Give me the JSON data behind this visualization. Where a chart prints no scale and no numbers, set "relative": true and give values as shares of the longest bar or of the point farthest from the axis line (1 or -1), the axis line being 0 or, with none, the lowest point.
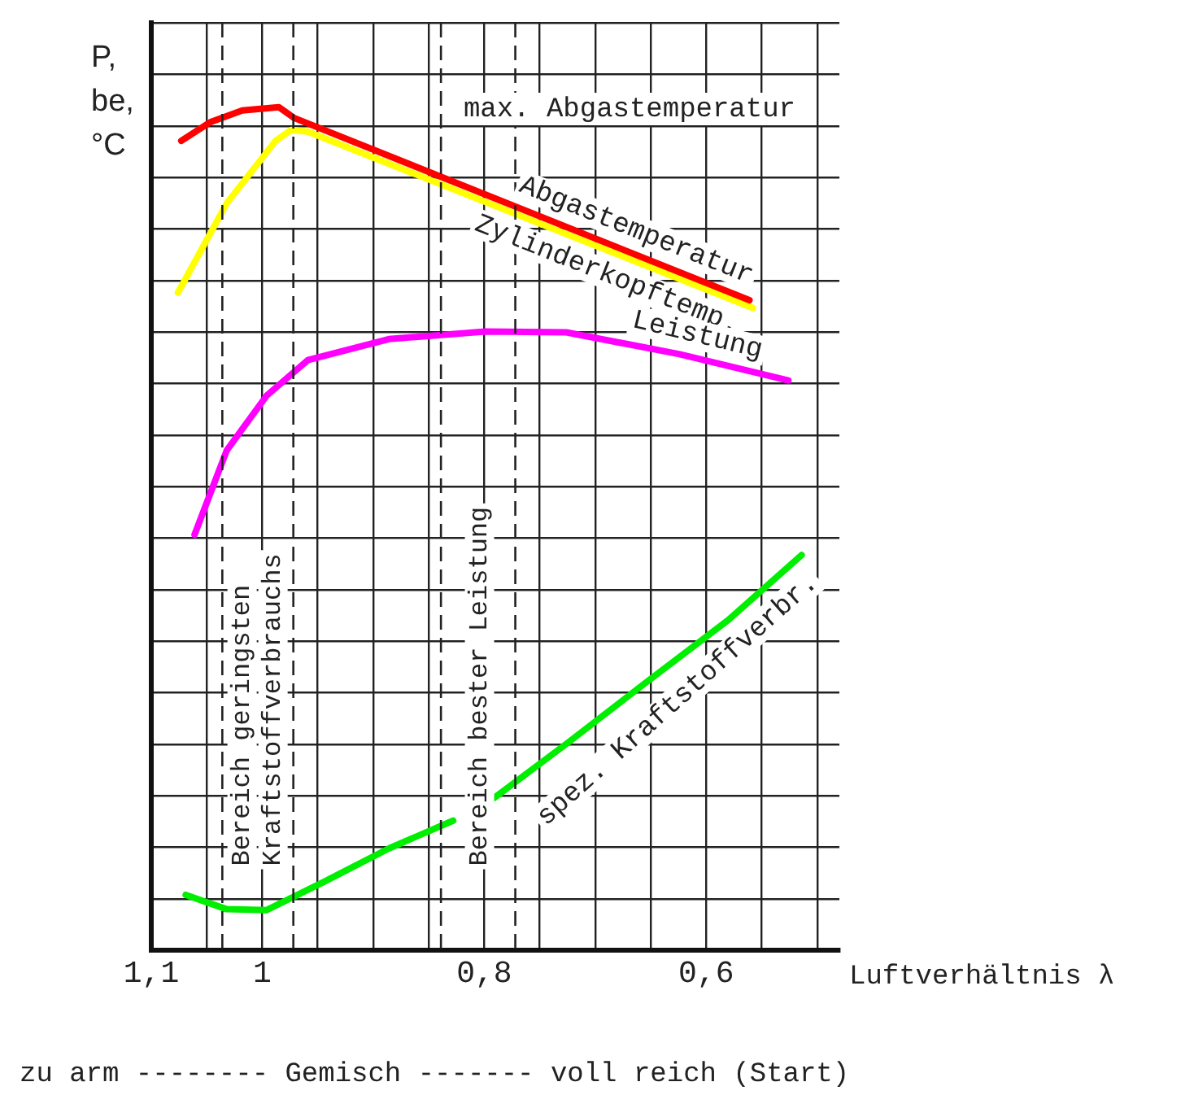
{
  "chart_data": {
    "type": "line",
    "relative": true,
    "xlabel": "Luftverhältnis λ",
    "ylabel": "P, be, °C",
    "xlim": [
      1.1,
      0.48
    ],
    "xticks": [
      {
        "value": 1.1,
        "label": "1,1"
      },
      {
        "value": 1.05,
        "label": null
      },
      {
        "value": 1,
        "label": "1"
      },
      {
        "value": 0.95,
        "label": null
      },
      {
        "value": 0.9,
        "label": null
      },
      {
        "value": 0.85,
        "label": null
      },
      {
        "value": 0.8,
        "label": "0,8"
      },
      {
        "value": 0.75,
        "label": null
      },
      {
        "value": 0.7,
        "label": null
      },
      {
        "value": 0.65,
        "label": null
      },
      {
        "value": 0.6,
        "label": "0,6"
      },
      {
        "value": 0.55,
        "label": null
      },
      {
        "value": 0.5,
        "label": null
      }
    ],
    "grid": true,
    "legend": false,
    "marker": "none",
    "line_style": "solid",
    "series": [
      {
        "name": "Abgastemperatur",
        "color": "#ff0000",
        "x": [
          1.073,
          1.047,
          1.018,
          0.985,
          0.971,
          0.561
        ],
        "values": [
          0.96,
          0.982,
          0.996,
          1,
          0.987,
          0.771
        ]
      },
      {
        "name": "Zylinderkopftemp.",
        "color": "#ffff00",
        "x": [
          1.076,
          1.032,
          0.988,
          0.974,
          0.959,
          0.558
        ],
        "values": [
          0.78,
          0.886,
          0.96,
          0.973,
          0.971,
          0.762
        ]
      },
      {
        "name": "Leistung",
        "color": "#ff00ff",
        "x": [
          1.061,
          1.032,
          0.996,
          0.959,
          0.886,
          0.799,
          0.726,
          0.624,
          0.526
        ],
        "values": [
          0.493,
          0.593,
          0.658,
          0.7,
          0.725,
          0.734,
          0.733,
          0.707,
          0.676
        ]
      },
      {
        "name": "spez. Kraftstoffverbr.",
        "color": "#00ee00",
        "x": [
          1.069,
          1.032,
          0.996,
          0.945,
          0.886,
          0.828,
          0.81,
          0.791,
          0.726,
          0.653,
          0.58,
          0.514
        ],
        "values": [
          0.066,
          0.049,
          0.048,
          0.081,
          0.121,
          0.154,
          null,
          0.181,
          0.245,
          0.319,
          0.392,
          0.469
        ]
      }
    ],
    "ref_lines": [
      {
        "axis": "x",
        "value": 1.036,
        "line_style": "dashed"
      },
      {
        "axis": "x",
        "value": 0.972,
        "line_style": "dashed",
        "label": "Bereich geringsten Kraftstoffverbrauchs"
      },
      {
        "axis": "x",
        "value": 0.839,
        "line_style": "dashed"
      },
      {
        "axis": "x",
        "value": 0.772,
        "line_style": "dashed",
        "label": "Bereich bester Leistung"
      }
    ],
    "annotations": [
      "max. Abgastemperatur",
      "zu arm -------- Gemisch ------- voll reich (Start)"
    ]
  }
}
